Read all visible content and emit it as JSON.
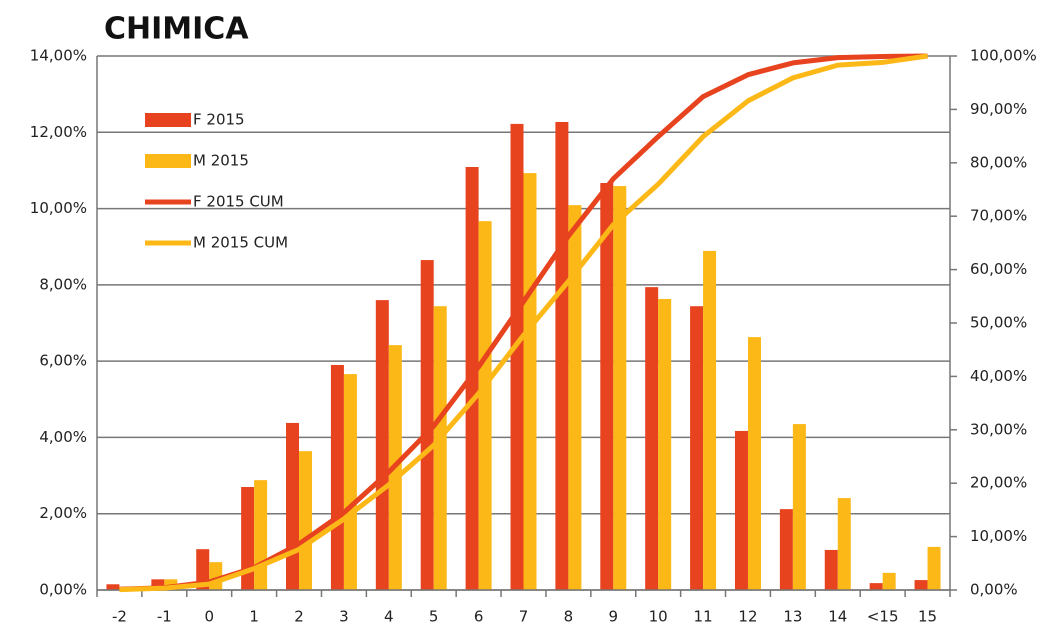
{
  "chart_data": {
    "type": "bar",
    "title": "CHIMICA",
    "categories": [
      "-2",
      "-1",
      "0",
      "1",
      "2",
      "3",
      "4",
      "5",
      "6",
      "7",
      "8",
      "9",
      "10",
      "11",
      "12",
      "13",
      "14",
      "<15",
      "15"
    ],
    "series": [
      {
        "name": "F 2015",
        "type": "bar",
        "color": "#e8431f",
        "values": [
          0.15,
          0.28,
          1.07,
          2.7,
          4.38,
          5.9,
          7.6,
          8.65,
          11.09,
          12.22,
          12.27,
          10.67,
          7.94,
          7.44,
          4.17,
          2.12,
          1.05,
          0.18,
          0.26
        ]
      },
      {
        "name": "M 2015",
        "type": "bar",
        "color": "#fbb817",
        "values": [
          0.08,
          0.28,
          0.73,
          2.88,
          3.64,
          5.66,
          6.42,
          7.44,
          9.67,
          10.93,
          10.09,
          10.59,
          7.63,
          8.89,
          6.63,
          4.35,
          2.41,
          0.45,
          1.13
        ]
      },
      {
        "name": "F 2015 CUM",
        "type": "line",
        "axis": "y2",
        "color": "#e8431f",
        "values": [
          0.15,
          0.43,
          1.5,
          4.2,
          8.6,
          14.5,
          22.1,
          30.7,
          41.8,
          54.0,
          66.3,
          77.0,
          84.9,
          92.4,
          96.5,
          98.7,
          99.7,
          99.9,
          100
        ]
      },
      {
        "name": "M 2015 CUM",
        "type": "line",
        "axis": "y2",
        "color": "#fbb817",
        "values": [
          0.08,
          0.36,
          1.1,
          4.0,
          7.6,
          13.3,
          19.7,
          27.1,
          36.8,
          47.7,
          57.8,
          68.4,
          76.0,
          84.9,
          91.6,
          95.9,
          98.3,
          98.8,
          100
        ]
      }
    ],
    "ylim": [
      0,
      14
    ],
    "yticks": [
      {
        "value": 0,
        "label": "0,00%"
      },
      {
        "value": 2,
        "label": "2,00%"
      },
      {
        "value": 4,
        "label": "4,00%"
      },
      {
        "value": 6,
        "label": "6,00%"
      },
      {
        "value": 8,
        "label": "8,00%"
      },
      {
        "value": 10,
        "label": "10,00%"
      },
      {
        "value": 12,
        "label": "12,00%"
      },
      {
        "value": 14,
        "label": "14,00%"
      }
    ],
    "y2lim": [
      0,
      100
    ],
    "y2ticks": [
      {
        "value": 0,
        "label": "0,00%"
      },
      {
        "value": 10,
        "label": "10,00%"
      },
      {
        "value": 20,
        "label": "20,00%"
      },
      {
        "value": 30,
        "label": "30,00%"
      },
      {
        "value": 40,
        "label": "40,00%"
      },
      {
        "value": 50,
        "label": "50,00%"
      },
      {
        "value": 60,
        "label": "60,00%"
      },
      {
        "value": 70,
        "label": "70,00%"
      },
      {
        "value": 80,
        "label": "80,00%"
      },
      {
        "value": 90,
        "label": "90,00%"
      },
      {
        "value": 100,
        "label": "100,00%"
      }
    ],
    "grid": true,
    "legend": "upper left"
  }
}
